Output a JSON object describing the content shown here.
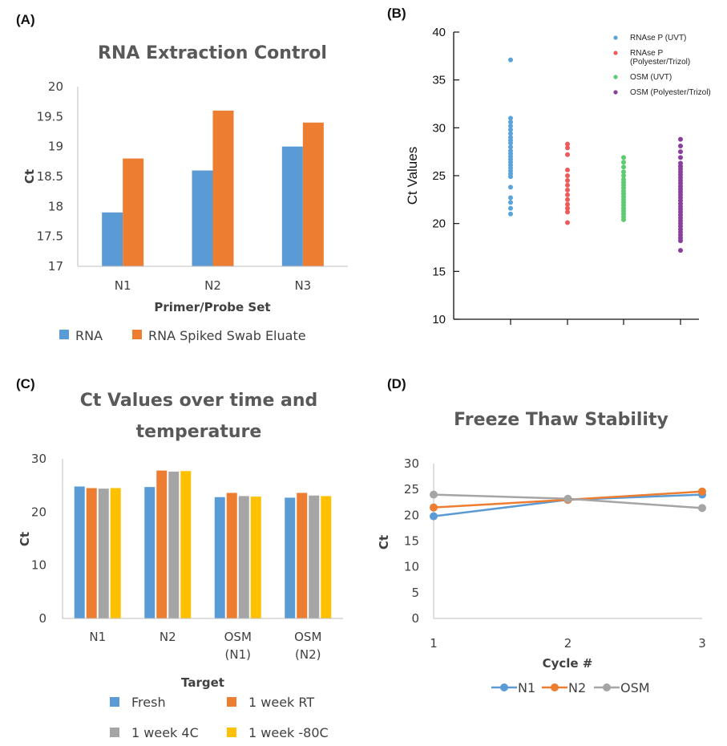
{
  "chart_data": [
    {
      "id": "A",
      "panel_label": "(A)",
      "type": "bar",
      "title": "RNA Extraction Control",
      "xlabel": "Primer/Probe Set",
      "ylabel": "Ct",
      "ylim": [
        17,
        20
      ],
      "yticks": [
        "17",
        "17.5",
        "18",
        "18.5",
        "19",
        "19.5",
        "20"
      ],
      "categories": [
        "N1",
        "N2",
        "N3"
      ],
      "series": [
        {
          "name": "RNA",
          "color": "#5B9BD5",
          "values": [
            17.9,
            18.6,
            19.0
          ]
        },
        {
          "name": "RNA Spiked Swab Eluate",
          "color": "#ED7D31",
          "values": [
            18.8,
            19.6,
            19.4
          ]
        }
      ]
    },
    {
      "id": "B",
      "panel_label": "(B)",
      "type": "scatter",
      "ylabel": "Ct Values",
      "ylim": [
        10,
        40
      ],
      "yticks": [
        "10",
        "15",
        "20",
        "25",
        "30",
        "35",
        "40"
      ],
      "series": [
        {
          "name": "RNAse P (UVT)",
          "legend_lines": [
            "RNAse P (UVT)"
          ],
          "color": "#5BA3D9",
          "values": [
            37.1,
            31.0,
            30.6,
            30.2,
            29.8,
            29.4,
            29.0,
            28.7,
            28.4,
            28.0,
            27.6,
            27.3,
            27.0,
            26.7,
            26.4,
            26.1,
            25.8,
            25.5,
            25.2,
            24.9,
            23.8,
            22.7,
            22.2,
            21.6,
            21.0
          ]
        },
        {
          "name": "RNAse P (Polyester/Trizol)",
          "legend_lines": [
            "RNAse P",
            "(Polyester/Trizol)"
          ],
          "color": "#EE5B5B",
          "values": [
            28.3,
            27.9,
            27.2,
            25.6,
            25.0,
            24.5,
            24.0,
            23.5,
            23.0,
            22.5,
            22.0,
            21.6,
            21.2,
            20.1
          ]
        },
        {
          "name": "OSM (UVT)",
          "legend_lines": [
            "OSM (UVT)"
          ],
          "color": "#5DCB6F",
          "values": [
            26.9,
            26.4,
            25.9,
            25.4,
            25.0,
            24.6,
            24.3,
            24.0,
            23.7,
            23.4,
            23.1,
            22.8,
            22.5,
            22.2,
            21.9,
            21.6,
            21.3,
            21.0,
            20.7,
            20.4
          ]
        },
        {
          "name": "OSM (Polyester/Trizol)",
          "legend_lines": [
            "OSM (Polyester/Trizol)"
          ],
          "color": "#8A3F9E",
          "values": [
            28.8,
            28.1,
            27.5,
            26.9,
            26.3,
            26.0,
            25.7,
            25.4,
            25.1,
            24.8,
            24.5,
            24.2,
            23.9,
            23.6,
            23.3,
            23.0,
            22.7,
            22.4,
            22.1,
            21.8,
            21.5,
            21.2,
            20.9,
            20.6,
            20.3,
            20.0,
            19.7,
            19.4,
            19.1,
            18.8,
            18.5,
            18.2,
            17.2
          ]
        }
      ]
    },
    {
      "id": "C",
      "panel_label": "(C)",
      "type": "bar",
      "title_lines": [
        "Ct Values over time and",
        "temperature"
      ],
      "xlabel": "Target",
      "ylabel": "Ct",
      "ylim": [
        0,
        30
      ],
      "yticks": [
        "0",
        "10",
        "20",
        "30"
      ],
      "categories": [
        [
          "N1"
        ],
        [
          "N2"
        ],
        [
          "OSM",
          "(N1)"
        ],
        [
          "OSM",
          "(N2)"
        ]
      ],
      "series": [
        {
          "name": "Fresh",
          "color": "#5B9BD5",
          "values": [
            24.8,
            24.7,
            22.8,
            22.7
          ]
        },
        {
          "name": "1 week RT",
          "color": "#ED7D31",
          "values": [
            24.5,
            27.8,
            23.6,
            23.6
          ]
        },
        {
          "name": "1 week 4C",
          "color": "#A5A5A5",
          "values": [
            24.4,
            27.6,
            23.0,
            23.1
          ]
        },
        {
          "name": "1 week -80C",
          "color": "#FFC000",
          "values": [
            24.5,
            27.7,
            22.9,
            23.0
          ]
        }
      ]
    },
    {
      "id": "D",
      "panel_label": "(D)",
      "type": "line",
      "title": "Freeze Thaw Stability",
      "xlabel": "Cycle #",
      "ylabel": "Ct",
      "ylim": [
        0,
        30
      ],
      "yticks": [
        "0",
        "5",
        "10",
        "15",
        "20",
        "25",
        "30"
      ],
      "x": [
        "1",
        "2",
        "3"
      ],
      "series": [
        {
          "name": "N1",
          "color": "#5B9BD5",
          "values": [
            19.8,
            23.0,
            24.0
          ]
        },
        {
          "name": "N2",
          "color": "#ED7D31",
          "values": [
            21.5,
            23.0,
            24.6
          ]
        },
        {
          "name": "OSM",
          "color": "#A5A5A5",
          "values": [
            24.0,
            23.2,
            21.4
          ]
        }
      ]
    }
  ]
}
